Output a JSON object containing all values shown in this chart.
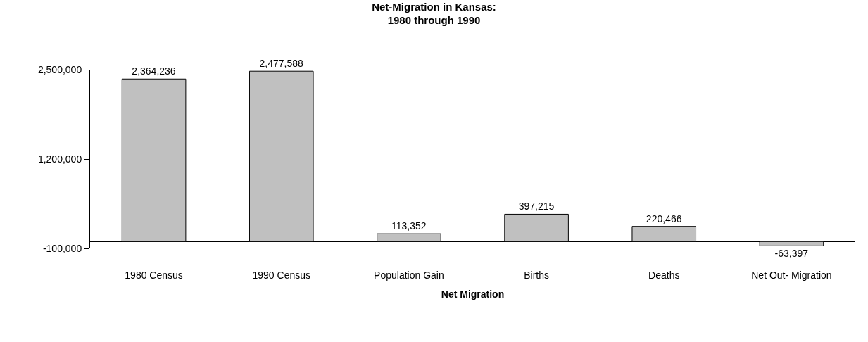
{
  "chart_data": {
    "type": "bar",
    "title": "Net-Migration in Kansas:\n1980 through 1990",
    "xlabel": "Net Migration",
    "categories": [
      "1980 Census",
      "1990 Census",
      "Population Gain",
      "Births",
      "Deaths",
      "Net Out- Migration"
    ],
    "values": [
      2364236,
      2477588,
      113352,
      397215,
      220466,
      -63397
    ],
    "color": "#c0c0c0",
    "ylim": [
      -100000,
      2500000
    ],
    "yticks": [
      {
        "value": -100000,
        "label": "-100,000"
      },
      {
        "value": 1200000,
        "label": "1,200,000"
      },
      {
        "value": 2500000,
        "label": "2,500,000"
      }
    ],
    "value_labels": [
      "2,364,236",
      "2,477,588",
      "113,352",
      "397,215",
      "220,466",
      "-63,397"
    ],
    "legend": false
  }
}
